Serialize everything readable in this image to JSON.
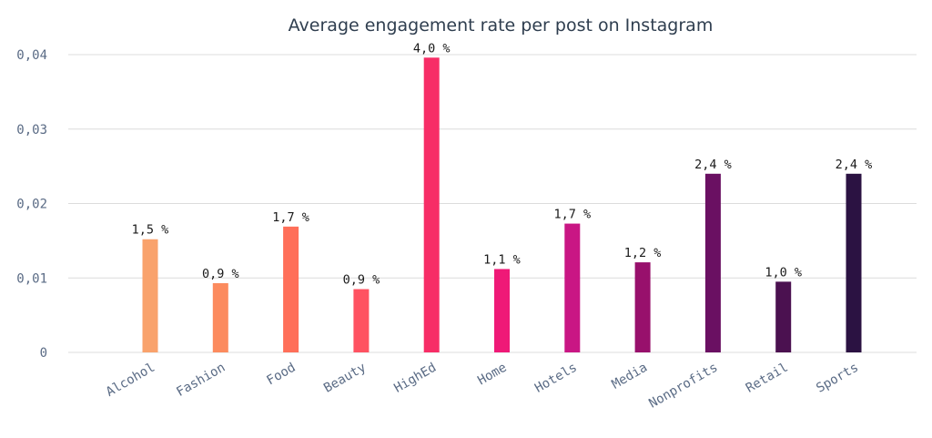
{
  "chart_data": {
    "type": "bar",
    "title": "Average engagement rate per post on Instagram",
    "xlabel": "",
    "ylabel": "",
    "categories": [
      "Alcohol",
      "Fashion",
      "Food",
      "Beauty",
      "HighEd",
      "Home",
      "Hotels",
      "Media",
      "Nonprofits",
      "Retail",
      "Sports"
    ],
    "values": [
      0.0152,
      0.0093,
      0.0169,
      0.0085,
      0.0396,
      0.0112,
      0.0173,
      0.0121,
      0.024,
      0.0095,
      0.024
    ],
    "data_labels": [
      "1,5 %",
      "0,9 %",
      "1,7 %",
      "0,9 %",
      "4,0 %",
      "1,1 %",
      "1,7 %",
      "1,2 %",
      "2,4 %",
      "1,0 %",
      "2,4 %"
    ],
    "colors": [
      "#f9a26c",
      "#fc8b5e",
      "#ff6f59",
      "#ff5261",
      "#f72d66",
      "#ef1977",
      "#c91684",
      "#98106c",
      "#6a1062",
      "#4b1150",
      "#2b1242"
    ],
    "ylim": [
      0,
      0.04
    ],
    "yticks": [
      0,
      0.01,
      0.02,
      0.03,
      0.04
    ],
    "ytick_labels": [
      "0",
      "0,01",
      "0,02",
      "0,03",
      "0,04"
    ],
    "grid": true,
    "legend": "none"
  }
}
